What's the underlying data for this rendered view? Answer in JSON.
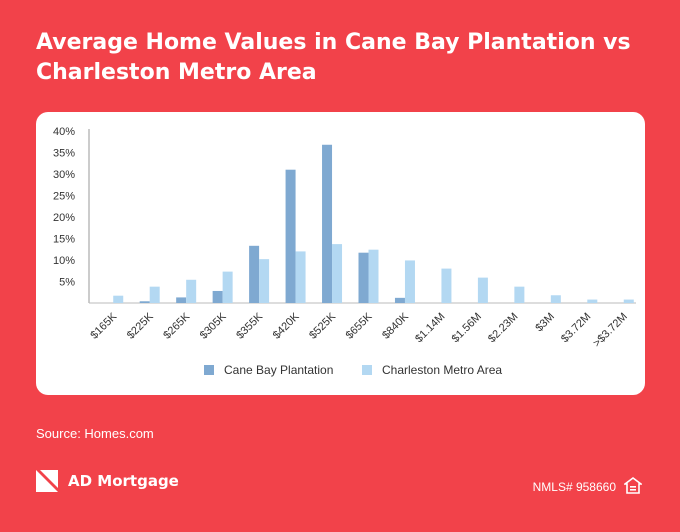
{
  "title": "Average Home Values in Cane Bay Plantation vs Charleston Metro Area",
  "source": "Source: Homes.com",
  "brand": {
    "name": "AD Mortgage",
    "nmls": "NMLS# 958660",
    "logo_icon": "ad-mortgage-logo-icon",
    "housing_icon": "equal-housing-icon"
  },
  "colors": {
    "background": "#F2424A",
    "series_a": "#7FA9D1",
    "series_b": "#B3D8F2"
  },
  "chart_data": {
    "type": "bar",
    "categories": [
      "$165K",
      "$225K",
      "$265K",
      "$305K",
      "$355K",
      "$420K",
      "$525K",
      "$655K",
      "$840K",
      "$1.14M",
      "$1.56M",
      "$2.23M",
      "$3M",
      "$3.72M",
      ">$3.72M"
    ],
    "series": [
      {
        "name": "Cane Bay Plantation",
        "values": [
          0,
          0.4,
          1.3,
          2.8,
          13.3,
          31,
          36.8,
          11.7,
          1.2,
          0,
          0,
          0,
          0,
          0,
          0
        ]
      },
      {
        "name": "Charleston Metro Area",
        "values": [
          1.7,
          3.8,
          5.4,
          7.3,
          10.2,
          12,
          13.7,
          12.4,
          9.9,
          8,
          5.9,
          3.8,
          1.8,
          0.8,
          0.8
        ]
      }
    ],
    "y_ticks": [
      "40%",
      "35%",
      "30%",
      "25%",
      "20%",
      "15%",
      "10%",
      "5%"
    ],
    "ylim": [
      0,
      40
    ],
    "grid": false,
    "legend": "bottom-center"
  }
}
